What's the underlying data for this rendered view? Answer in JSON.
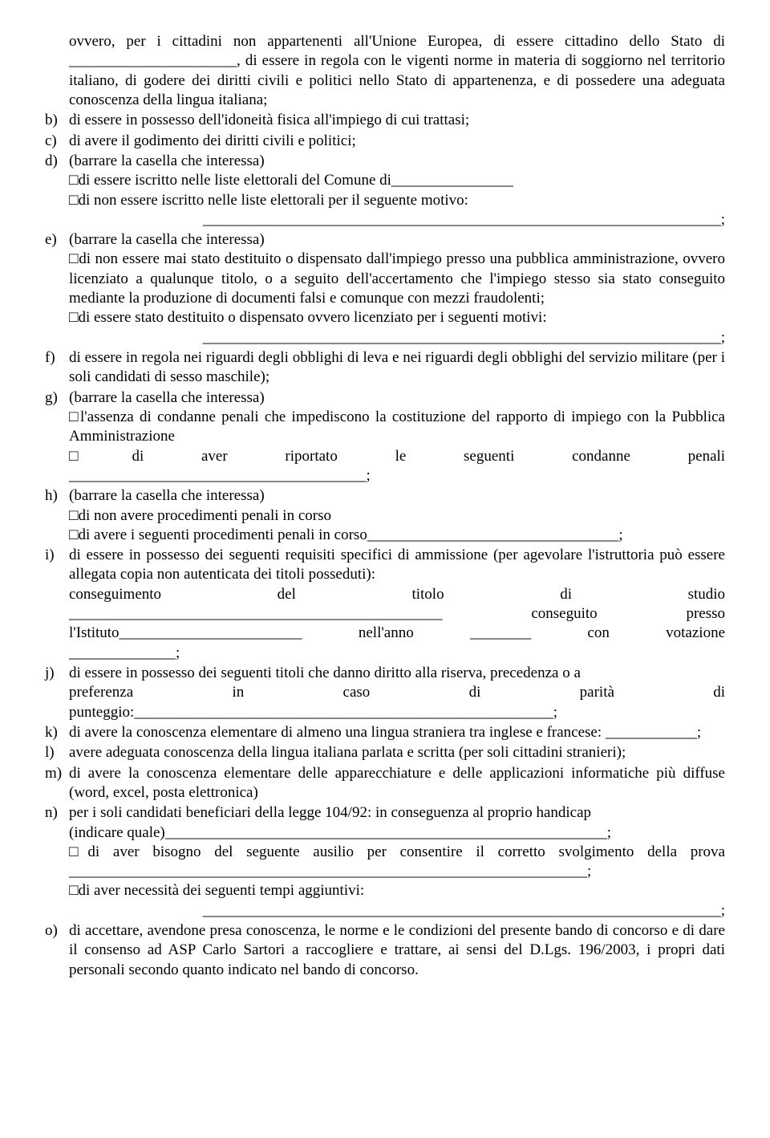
{
  "intro": "ovvero, per i cittadini non appartenenti all'Unione Europea, di essere cittadino dello Stato di ______________________, di essere in regola con le vigenti norme in materia di soggiorno nel territorio italiano, di godere dei diritti civili e politici nello Stato di appartenenza, e di possedere una adeguata conoscenza della lingua italiana;",
  "items": {
    "b": "di essere in possesso dell'idoneità fisica all'impiego di cui trattasi;",
    "c": "di avere il godimento dei diritti civili e politici;",
    "d_head": "(barrare la casella che interessa)",
    "d_l1": "□di essere iscritto nelle liste elettorali del Comune di________________",
    "d_l2": "□di non essere iscritto nelle liste elettorali per il seguente motivo:",
    "d_l3": "____________________________________________________________________;",
    "e_head": "(barrare la casella che interessa)",
    "e_l1": "□di non essere mai stato destituito o dispensato dall'impiego presso una pubblica amministrazione, ovvero licenziato a qualunque titolo, o a seguito dell'accertamento che l'impiego stesso sia stato conseguito mediante la produzione di documenti falsi e comunque con mezzi fraudolenti;",
    "e_l2": "□di essere stato destituito o dispensato ovvero licenziato per i seguenti motivi:",
    "e_l3": "____________________________________________________________________;",
    "f": "di essere in regola nei riguardi degli obblighi di leva e nei riguardi degli obblighi del servizio militare (per i soli candidati di sesso maschile);",
    "g_head": "(barrare la casella che interessa)",
    "g_l1": "□l'assenza di condanne penali che impediscono la costituzione del rapporto di impiego con la Pubblica Amministrazione",
    "g_l2a": "□di",
    "g_l2b": "aver",
    "g_l2c": "riportato",
    "g_l2d": "le",
    "g_l2e": "seguenti",
    "g_l2f": "condanne",
    "g_l2g": "penali",
    "g_l3": "_______________________________________;",
    "h_head": "(barrare la casella che interessa)",
    "h_l1": "□di non avere procedimenti penali in corso",
    "h_l2": "□di avere i seguenti procedimenti penali in corso_________________________________;",
    "i_head": "di essere in possesso dei seguenti requisiti specifici di ammissione (per agevolare l'istruttoria può essere allegata copia non autenticata dei titoli posseduti):",
    "i_l1a": "conseguimento",
    "i_l1b": "del",
    "i_l1c": "titolo",
    "i_l1d": "di",
    "i_l1e": "studio",
    "i_l2a": "_________________________________________________",
    "i_l2b": "conseguito",
    "i_l2c": "presso",
    "i_l3a": "l'Istituto________________________",
    "i_l3b": "nell'anno",
    "i_l3c": "________",
    "i_l3d": "con",
    "i_l3e": "votazione",
    "i_l4": "______________;",
    "j_head": "di essere in possesso dei seguenti titoli che danno diritto alla riserva, precedenza o a",
    "j_l1a": "preferenza",
    "j_l1b": "in",
    "j_l1c": "caso",
    "j_l1d": "di",
    "j_l1e": "parità",
    "j_l1f": "di",
    "j_l2": "punteggio:_______________________________________________________;",
    "k": "di avere la conoscenza elementare di almeno una lingua straniera tra inglese e francese: ____________;",
    "l": "avere adeguata conoscenza della lingua italiana parlata e scritta (per soli cittadini stranieri);",
    "m": "di avere la conoscenza elementare delle apparecchiature e delle applicazioni informatiche più diffuse (word, excel, posta elettronica)",
    "n_head": "per i soli candidati beneficiari della legge 104/92:  in conseguenza al proprio handicap",
    "n_l1": "(indicare quale)__________________________________________________________;",
    "n_l2": "□di aver bisogno del seguente ausilio per consentire il corretto svolgimento della prova ____________________________________________________________________;",
    "n_l3": "□di aver necessità dei seguenti tempi aggiuntivi:",
    "n_l4": "____________________________________________________________________;",
    "o": "di accettare, avendone presa conoscenza, le norme e le condizioni del presente bando di concorso e di dare il consenso ad ASP Carlo Sartori a raccogliere e trattare, ai sensi del D.Lgs. 196/2003, i propri dati personali secondo quanto indicato nel bando di concorso."
  }
}
